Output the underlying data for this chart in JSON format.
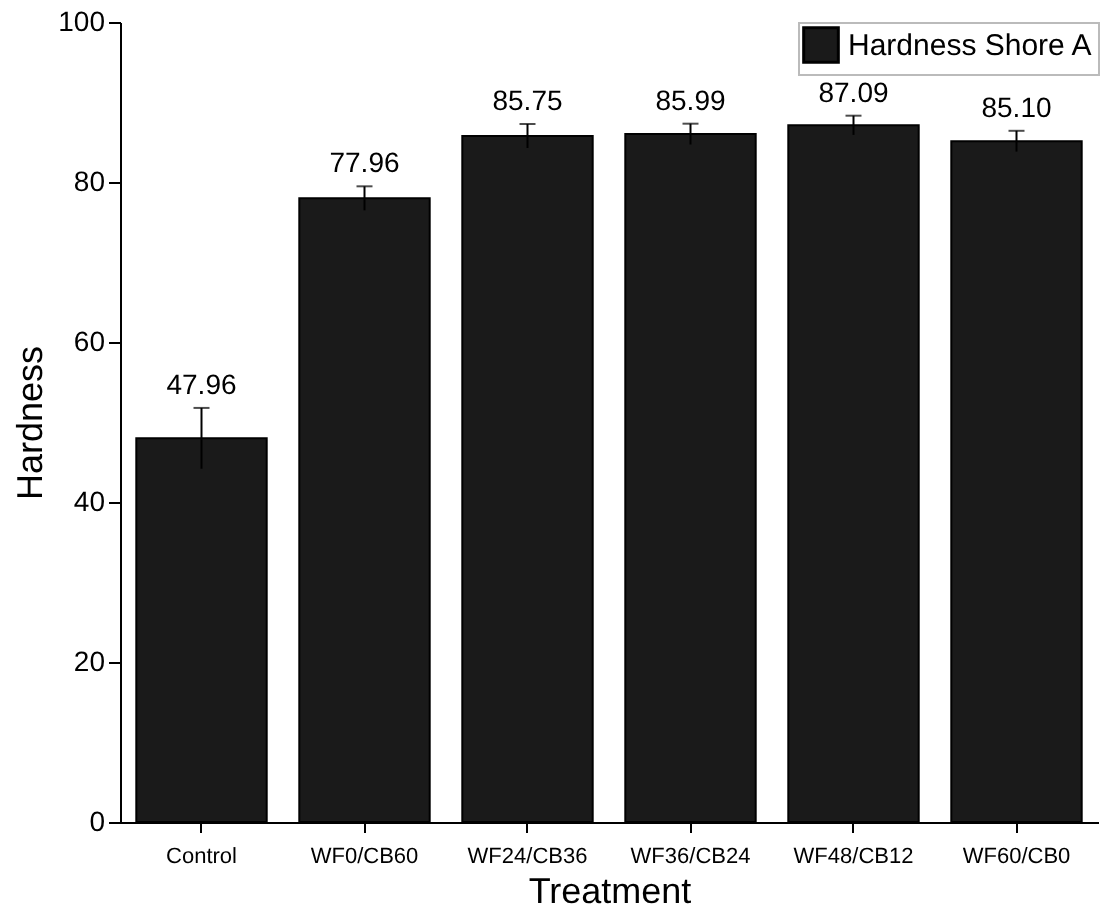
{
  "chart_data": {
    "type": "bar",
    "xlabel": "Treatment",
    "ylabel": "Hardness",
    "categories": [
      "Control",
      "WF0/CB60",
      "WF24/CB36",
      "WF36/CB24",
      "WF48/CB12",
      "WF60/CB0"
    ],
    "series": [
      {
        "name": "Hardness Shore A",
        "color": "#1a1a1a",
        "values": [
          47.96,
          77.96,
          85.75,
          85.99,
          87.09,
          85.1
        ],
        "errors": [
          3.8,
          1.5,
          1.5,
          1.3,
          1.2,
          1.3
        ],
        "value_labels": [
          "47.96",
          "77.96",
          "85.75",
          "85.99",
          "87.09",
          "85.10"
        ]
      }
    ],
    "ylim": [
      0,
      100
    ],
    "yticks": [
      0,
      20,
      40,
      60,
      80,
      100
    ],
    "legend": "top right",
    "grid": false
  }
}
